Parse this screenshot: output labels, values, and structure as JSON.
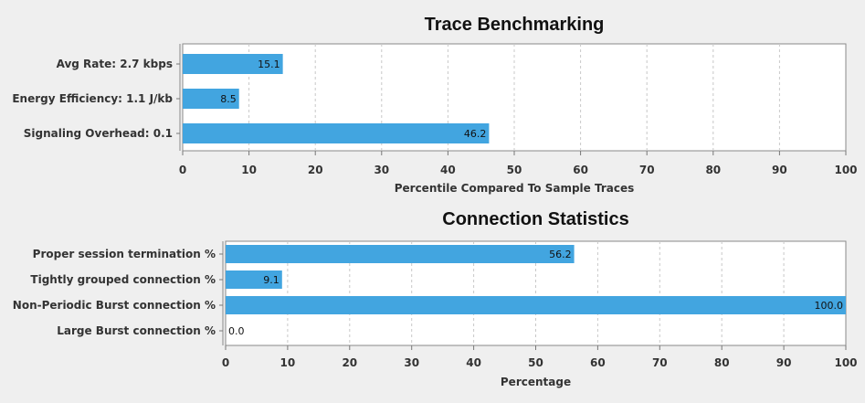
{
  "colors": {
    "bar": "#42a5e0",
    "background": "#efefef",
    "plot_bg": "#ffffff",
    "grid": "#c8c8c8"
  },
  "chart_data": [
    {
      "type": "bar",
      "orientation": "horizontal",
      "title": "Trace Benchmarking",
      "xlabel": "Percentile Compared To Sample Traces",
      "ylabel": "",
      "xlim": [
        0,
        100
      ],
      "xticks": [
        "0",
        "10",
        "20",
        "30",
        "40",
        "50",
        "60",
        "70",
        "80",
        "90",
        "100"
      ],
      "grid": true,
      "categories": [
        "Avg Rate: 2.7 kbps",
        "Energy Efficiency: 1.1 J/kb",
        "Signaling Overhead: 0.1"
      ],
      "values": [
        15.1,
        8.5,
        46.2
      ],
      "value_labels": [
        "15.1",
        "8.5",
        "46.2"
      ]
    },
    {
      "type": "bar",
      "orientation": "horizontal",
      "title": "Connection Statistics",
      "xlabel": "Percentage",
      "ylabel": "",
      "xlim": [
        0,
        100
      ],
      "xticks": [
        "0",
        "10",
        "20",
        "30",
        "40",
        "50",
        "60",
        "70",
        "80",
        "90",
        "100"
      ],
      "grid": true,
      "categories": [
        "Proper session termination %",
        "Tightly grouped connection %",
        "Non-Periodic Burst connection %",
        "Large Burst connection %"
      ],
      "values": [
        56.2,
        9.1,
        100.0,
        0.0
      ],
      "value_labels": [
        "56.2",
        "9.1",
        "100.0",
        "0.0"
      ]
    }
  ]
}
